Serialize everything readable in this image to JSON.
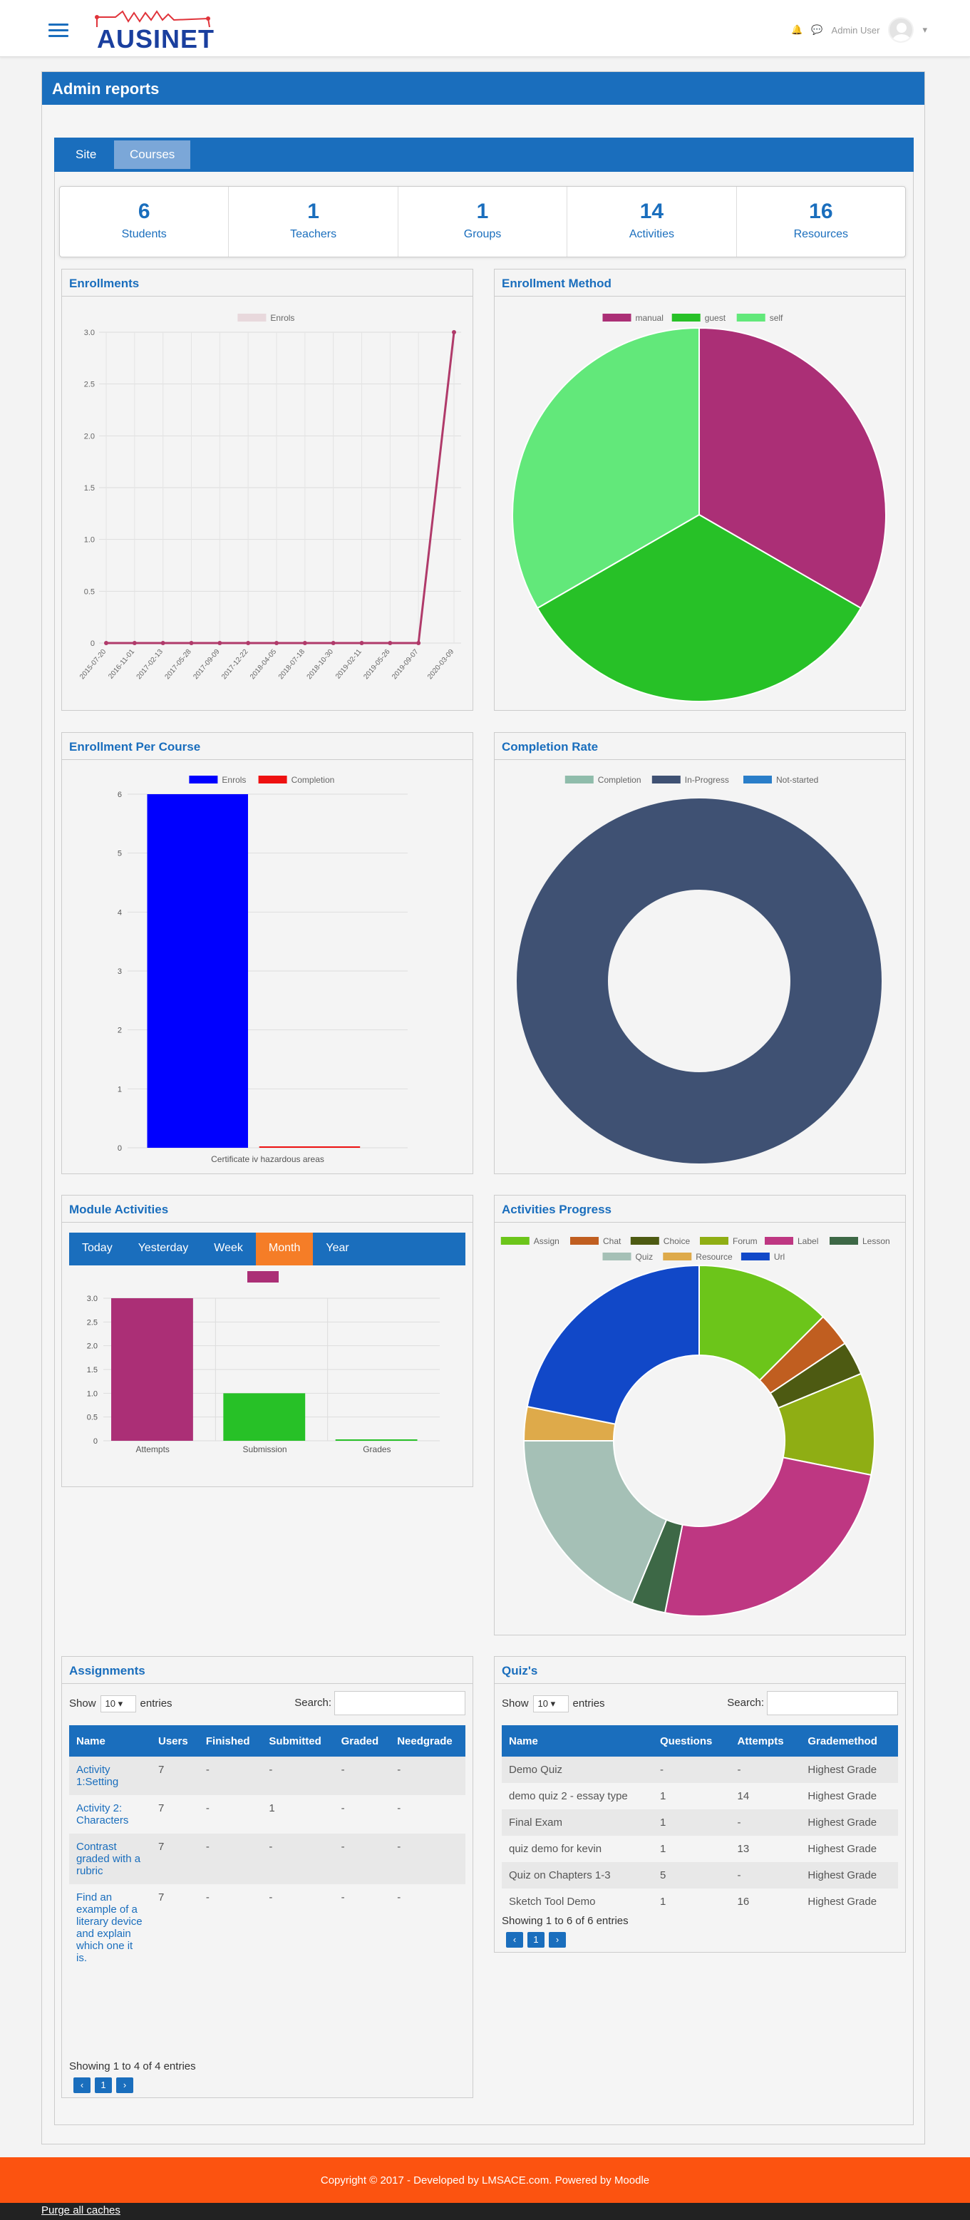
{
  "navbar": {
    "brand": "AUSINET",
    "user_name": "Admin User"
  },
  "page": {
    "title": "Admin reports",
    "tabs": [
      {
        "label": "Site"
      },
      {
        "label": "Courses"
      }
    ],
    "active_tab": "Courses"
  },
  "stats": [
    {
      "value": "6",
      "label": "Students"
    },
    {
      "value": "1",
      "label": "Teachers"
    },
    {
      "value": "1",
      "label": "Groups"
    },
    {
      "value": "14",
      "label": "Activities"
    },
    {
      "value": "16",
      "label": "Resources"
    }
  ],
  "cards": {
    "enrollments": "Enrollments",
    "enrollment_method": "Enrollment Method",
    "enrollment_per_course": "Enrollment Per Course",
    "completion_rate": "Completion Rate",
    "module_activities": "Module Activities",
    "activities_progress": "Activities Progress",
    "assignments": "Assignments",
    "quizzes": "Quiz's"
  },
  "module_tabs": [
    "Today",
    "Yesterday",
    "Week",
    "Month",
    "Year"
  ],
  "module_active_tab": "Month",
  "chart_data": [
    {
      "id": "enrollments",
      "type": "line",
      "title": "Enrollments",
      "legend": [
        "Enrols"
      ],
      "x": [
        "2015-07-20",
        "2016-11-01",
        "2017-02-13",
        "2017-05-28",
        "2017-09-09",
        "2017-12-22",
        "2018-04-05",
        "2018-07-18",
        "2018-10-30",
        "2019-02-11",
        "2019-05-26",
        "2019-09-07",
        "2020-03-09"
      ],
      "y": [
        0,
        0,
        0,
        0,
        0,
        0,
        0,
        0,
        0,
        0,
        0,
        0,
        3
      ],
      "yticks": [
        "0",
        "0.5",
        "1.0",
        "1.5",
        "2.0",
        "2.5",
        "3.0"
      ],
      "ylim": [
        0,
        3
      ],
      "color": "#b03a6a"
    },
    {
      "id": "enrollment_method",
      "type": "pie",
      "title": "Enrollment Method",
      "categories": [
        "manual",
        "guest",
        "self"
      ],
      "values": [
        1,
        1,
        1
      ],
      "colors": [
        "#ab2f76",
        "#27c127",
        "#62e87a"
      ]
    },
    {
      "id": "enrollment_per_course",
      "type": "bar",
      "title": "Enrollment Per Course",
      "categories": [
        "Certificate iv hazardous areas"
      ],
      "series": [
        {
          "name": "Enrols",
          "values": [
            6
          ],
          "color": "#0000ff"
        },
        {
          "name": "Completion",
          "values": [
            0
          ],
          "color": "#ee1111"
        }
      ],
      "yticks": [
        "0",
        "1",
        "2",
        "3",
        "4",
        "5",
        "6"
      ],
      "ylim": [
        0,
        6
      ]
    },
    {
      "id": "completion_rate",
      "type": "pie",
      "title": "Completion Rate",
      "categories": [
        "Completion",
        "In-Progress",
        "Not-started"
      ],
      "values": [
        0,
        1,
        0
      ],
      "colors": [
        "#8fbcab",
        "#3f5173",
        "#2a7ec9"
      ]
    },
    {
      "id": "module_activities",
      "type": "bar",
      "title": "Module Activities",
      "categories": [
        "Attempts",
        "Submission",
        "Grades"
      ],
      "values": [
        3,
        1,
        0
      ],
      "colors": [
        "#ab2f76",
        "#27c127",
        "#27c127"
      ],
      "yticks": [
        "0",
        "0.5",
        "1.0",
        "1.5",
        "2.0",
        "2.5",
        "3.0"
      ],
      "ylim": [
        0,
        3
      ],
      "legend_color": "#ab2f76"
    },
    {
      "id": "activities_progress",
      "type": "pie",
      "title": "Activities Progress",
      "categories": [
        "Assign",
        "Chat",
        "Choice",
        "Forum",
        "Label",
        "Lesson",
        "Quiz",
        "Resource",
        "Url"
      ],
      "values": [
        4,
        1,
        1,
        3,
        8,
        1,
        6,
        1,
        7
      ],
      "colors": [
        "#6cc51a",
        "#c05e20",
        "#4d5a12",
        "#8fae14",
        "#be3782",
        "#3d6846",
        "#a5c0b6",
        "#deaa4a",
        "#1148c8"
      ]
    }
  ],
  "assignments": {
    "show_label": "Show",
    "length": "10",
    "entries_label": "entries",
    "search_label": "Search:",
    "columns": [
      "Name",
      "Users",
      "Finished",
      "Submitted",
      "Graded",
      "Needgrade"
    ],
    "rows": [
      {
        "name": "Activity 1:Setting",
        "users": "7",
        "finished": "-",
        "submitted": "-",
        "graded": "-",
        "needgrade": "-"
      },
      {
        "name": "Activity 2: Characters",
        "users": "7",
        "finished": "-",
        "submitted": "1",
        "graded": "-",
        "needgrade": "-"
      },
      {
        "name": "Contrast graded with a rubric",
        "users": "7",
        "finished": "-",
        "submitted": "-",
        "graded": "-",
        "needgrade": "-"
      },
      {
        "name": "Find an example of a literary device and explain which one it is.",
        "users": "7",
        "finished": "-",
        "submitted": "-",
        "graded": "-",
        "needgrade": "-"
      }
    ],
    "info": "Showing 1 to 4 of 4 entries",
    "page": "1"
  },
  "quizzes": {
    "show_label": "Show",
    "length": "10",
    "entries_label": "entries",
    "search_label": "Search:",
    "columns": [
      "Name",
      "Questions",
      "Attempts",
      "Grademethod"
    ],
    "rows": [
      {
        "name": "Demo Quiz",
        "questions": "-",
        "attempts": "-",
        "grademethod": "Highest Grade"
      },
      {
        "name": "demo quiz 2 - essay type",
        "questions": "1",
        "attempts": "14",
        "grademethod": "Highest Grade"
      },
      {
        "name": "Final Exam",
        "questions": "1",
        "attempts": "-",
        "grademethod": "Highest Grade"
      },
      {
        "name": "quiz demo for kevin",
        "questions": "1",
        "attempts": "13",
        "grademethod": "Highest Grade"
      },
      {
        "name": "Quiz on Chapters 1-3",
        "questions": "5",
        "attempts": "-",
        "grademethod": "Highest Grade"
      },
      {
        "name": "Sketch Tool Demo",
        "questions": "1",
        "attempts": "16",
        "grademethod": "Highest Grade"
      }
    ],
    "info": "Showing 1 to 6 of 6 entries",
    "page": "1"
  },
  "footer": {
    "copyright": "Copyright © 2017 - Developed by LMSACE.com. Powered by Moodle",
    "purge": "Purge all caches"
  }
}
